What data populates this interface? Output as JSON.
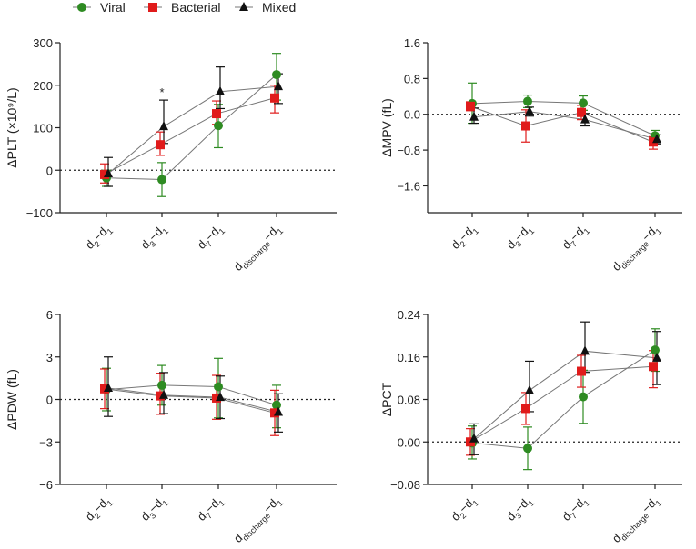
{
  "figure": {
    "legend": [
      {
        "name": "Viral",
        "color": "#2e8b22",
        "marker": "circle"
      },
      {
        "name": "Bacterial",
        "color": "#e01b1b",
        "marker": "square"
      },
      {
        "name": "Mixed",
        "color": "#111111",
        "marker": "triangle"
      }
    ]
  },
  "chart_data": [
    {
      "type": "line",
      "id": "plt",
      "ylabel": "ΔPLT (×10⁹/L)",
      "ylim": [
        -100,
        300
      ],
      "yticks": [
        "−100",
        "0",
        "100",
        "200",
        "300"
      ],
      "ytick_values": [
        -100,
        0,
        100,
        200,
        300
      ],
      "categories": [
        "d2−d1",
        "d3−d1",
        "d7−d1",
        "ddischarge−d1"
      ],
      "reference_line": 0,
      "annotation": {
        "text": "*",
        "category_index": 1
      },
      "series": [
        {
          "name": "Viral",
          "values": [
            -18,
            -22,
            105,
            225
          ],
          "err_up": [
            18,
            40,
            50,
            50
          ],
          "err_down": [
            20,
            40,
            52,
            60
          ]
        },
        {
          "name": "Bacterial",
          "values": [
            -10,
            60,
            133,
            170
          ],
          "err_up": [
            25,
            30,
            30,
            30
          ],
          "err_down": [
            20,
            25,
            25,
            35
          ]
        },
        {
          "name": "Mixed",
          "values": [
            -8,
            103,
            185,
            197
          ],
          "err_up": [
            38,
            62,
            58,
            30
          ],
          "err_down": [
            30,
            40,
            40,
            40
          ]
        }
      ]
    },
    {
      "type": "line",
      "id": "mpv",
      "ylabel": "ΔMPV (fL)",
      "ylim": [
        -2.2,
        1.6
      ],
      "yticks": [
        "−1.6",
        "−0.8",
        "0.0",
        "0.8",
        "1.6"
      ],
      "ytick_values": [
        -1.6,
        -0.8,
        0.0,
        0.8,
        1.6
      ],
      "categories": [
        "d2−d1",
        "d3−d1",
        "d7−d1",
        "ddischarge−d1"
      ],
      "reference_line": 0,
      "series": [
        {
          "name": "Viral",
          "values": [
            0.24,
            0.29,
            0.25,
            -0.48
          ],
          "err_up": [
            0.46,
            0.14,
            0.16,
            0.12
          ],
          "err_down": [
            0.44,
            0.14,
            0.16,
            0.12
          ]
        },
        {
          "name": "Bacterial",
          "values": [
            0.18,
            -0.26,
            0.04,
            -0.62
          ],
          "err_up": [
            0.1,
            0.36,
            0.16,
            0.12
          ],
          "err_down": [
            0.1,
            0.36,
            0.16,
            0.16
          ]
        },
        {
          "name": "Mixed",
          "values": [
            -0.06,
            0.06,
            -0.12,
            -0.56
          ],
          "err_up": [
            0.2,
            0.1,
            0.14,
            0.1
          ],
          "err_down": [
            0.14,
            0.1,
            0.14,
            0.1
          ]
        }
      ]
    },
    {
      "type": "line",
      "id": "pdw",
      "ylabel": "ΔPDW (fL)",
      "ylim": [
        -6,
        6
      ],
      "yticks": [
        "−6",
        "−3",
        "0",
        "3",
        "6"
      ],
      "ytick_values": [
        -6,
        -3,
        0,
        3,
        6
      ],
      "categories": [
        "d2−d1",
        "d3−d1",
        "d7−d1",
        "ddischarge−d1"
      ],
      "reference_line": 0,
      "series": [
        {
          "name": "Viral",
          "values": [
            0.7,
            1.0,
            0.9,
            -0.4
          ],
          "err_up": [
            1.5,
            1.4,
            2.0,
            1.4
          ],
          "err_down": [
            1.5,
            1.4,
            2.2,
            1.6
          ]
        },
        {
          "name": "Bacterial",
          "values": [
            0.75,
            0.25,
            0.1,
            -0.95
          ],
          "err_up": [
            1.4,
            1.6,
            1.6,
            1.6
          ],
          "err_down": [
            1.4,
            1.3,
            1.5,
            1.6
          ]
        },
        {
          "name": "Mixed",
          "values": [
            0.8,
            0.3,
            0.15,
            -0.9
          ],
          "err_up": [
            2.2,
            1.6,
            1.5,
            1.3
          ],
          "err_down": [
            2.0,
            1.3,
            1.5,
            1.4
          ]
        }
      ]
    },
    {
      "type": "line",
      "id": "pct",
      "ylabel": "ΔPCT",
      "ylim": [
        -0.08,
        0.24
      ],
      "yticks": [
        "−0.08",
        "0.00",
        "0.08",
        "0.16",
        "0.24"
      ],
      "ytick_values": [
        -0.08,
        0.0,
        0.08,
        0.16,
        0.24
      ],
      "categories": [
        "d2−d1",
        "d3−d1",
        "d7−d1",
        "ddischarge−d1"
      ],
      "reference_line": 0,
      "series": [
        {
          "name": "Viral",
          "values": [
            -0.002,
            -0.012,
            0.085,
            0.173
          ],
          "err_up": [
            0.032,
            0.04,
            0.05,
            0.04
          ],
          "err_down": [
            0.03,
            0.04,
            0.05,
            0.04
          ]
        },
        {
          "name": "Bacterial",
          "values": [
            0.0,
            0.063,
            0.133,
            0.142
          ],
          "err_up": [
            0.025,
            0.03,
            0.03,
            0.03
          ],
          "err_down": [
            0.025,
            0.03,
            0.03,
            0.04
          ]
        },
        {
          "name": "Mixed",
          "values": [
            0.006,
            0.097,
            0.171,
            0.158
          ],
          "err_up": [
            0.028,
            0.055,
            0.055,
            0.05
          ],
          "err_down": [
            0.03,
            0.04,
            0.04,
            0.05
          ]
        }
      ]
    }
  ]
}
